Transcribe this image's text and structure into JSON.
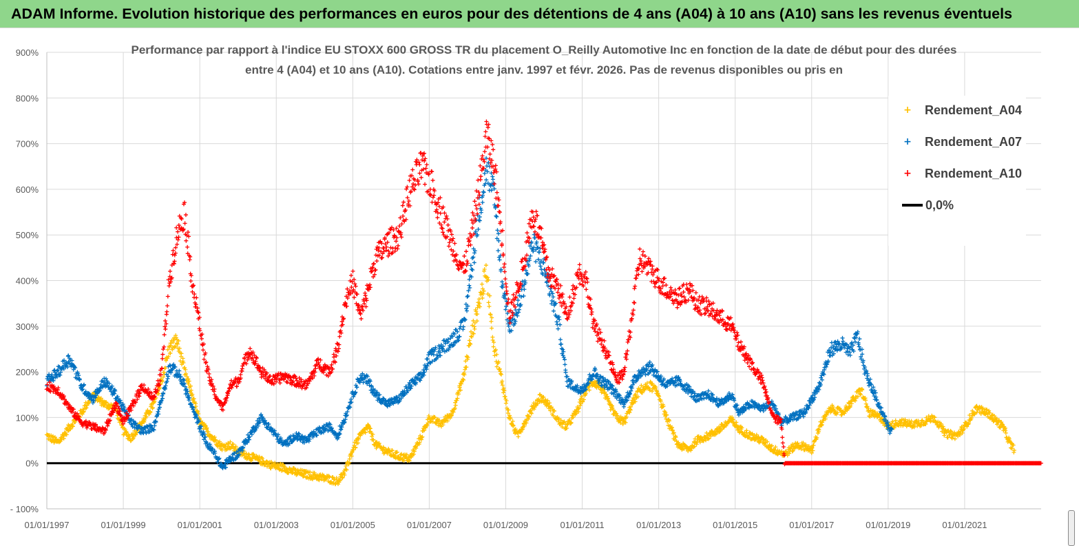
{
  "banner": {
    "title": "ADAM Informe. Evolution historique des performances en euros pour des détentions de 4 ans (A04) à 10 ans (A10) sans les revenus éventuels",
    "color": "#8fd68b"
  },
  "chart_data": {
    "type": "scatter",
    "title_lines": [
      "Performance par rapport à l'indice EU STOXX 600 GROSS TR  du placement O_Reilly Automotive Inc en fonction de la date de début pour des durées",
      "entre 4 (A04) et 10 ans (A10).  Cotations entre janv. 1997 et févr. 2026. Pas de revenus disponibles ou pris en"
    ],
    "xlabel": "",
    "ylabel": "",
    "x_range": [
      1997.0,
      2023.0
    ],
    "ylim": [
      -100,
      900
    ],
    "y_ticks": [
      -100,
      0,
      100,
      200,
      300,
      400,
      500,
      600,
      700,
      800,
      900
    ],
    "y_tick_labels": [
      "- 100%",
      "0%",
      "100%",
      "200%",
      "300%",
      "400%",
      "500%",
      "600%",
      "700%",
      "800%",
      "900%"
    ],
    "x_ticks": [
      1997,
      1999,
      2001,
      2003,
      2005,
      2007,
      2009,
      2011,
      2013,
      2015,
      2017,
      2019,
      2021
    ],
    "x_tick_labels": [
      "01/01/1997",
      "01/01/1999",
      "01/01/2001",
      "01/01/2003",
      "01/01/2005",
      "01/01/2007",
      "01/01/2009",
      "01/01/2011",
      "01/01/2013",
      "01/01/2015",
      "01/01/2017",
      "01/01/2019",
      "01/01/2021"
    ],
    "grid": true,
    "legend_position": "top-right",
    "series": [
      {
        "name": "Rendement_A04",
        "color": "#ffc000",
        "marker": "+",
        "points": [
          [
            1997.0,
            60
          ],
          [
            1997.3,
            45
          ],
          [
            1997.6,
            80
          ],
          [
            1997.9,
            110
          ],
          [
            1998.2,
            150
          ],
          [
            1998.5,
            130
          ],
          [
            1998.8,
            120
          ],
          [
            1999.0,
            70
          ],
          [
            1999.2,
            55
          ],
          [
            1999.5,
            90
          ],
          [
            1999.8,
            130
          ],
          [
            2000.0,
            180
          ],
          [
            2000.2,
            250
          ],
          [
            2000.4,
            270
          ],
          [
            2000.6,
            200
          ],
          [
            2000.8,
            150
          ],
          [
            2001.0,
            90
          ],
          [
            2001.2,
            70
          ],
          [
            2001.4,
            50
          ],
          [
            2001.6,
            35
          ],
          [
            2001.8,
            40
          ],
          [
            2002.0,
            25
          ],
          [
            2002.3,
            15
          ],
          [
            2002.6,
            5
          ],
          [
            2002.9,
            -5
          ],
          [
            2003.2,
            -10
          ],
          [
            2003.5,
            -20
          ],
          [
            2003.8,
            -25
          ],
          [
            2004.1,
            -30
          ],
          [
            2004.4,
            -35
          ],
          [
            2004.6,
            -40
          ],
          [
            2004.8,
            -20
          ],
          [
            2005.0,
            30
          ],
          [
            2005.2,
            60
          ],
          [
            2005.4,
            80
          ],
          [
            2005.6,
            40
          ],
          [
            2005.9,
            25
          ],
          [
            2006.2,
            15
          ],
          [
            2006.5,
            10
          ],
          [
            2006.8,
            60
          ],
          [
            2007.0,
            100
          ],
          [
            2007.3,
            85
          ],
          [
            2007.6,
            110
          ],
          [
            2007.9,
            190
          ],
          [
            2008.1,
            280
          ],
          [
            2008.3,
            350
          ],
          [
            2008.5,
            420
          ],
          [
            2008.7,
            250
          ],
          [
            2008.9,
            180
          ],
          [
            2009.1,
            100
          ],
          [
            2009.3,
            60
          ],
          [
            2009.5,
            90
          ],
          [
            2009.7,
            120
          ],
          [
            2009.9,
            145
          ],
          [
            2010.1,
            130
          ],
          [
            2010.4,
            90
          ],
          [
            2010.6,
            80
          ],
          [
            2010.9,
            120
          ],
          [
            2011.1,
            160
          ],
          [
            2011.3,
            180
          ],
          [
            2011.5,
            165
          ],
          [
            2011.7,
            130
          ],
          [
            2011.9,
            100
          ],
          [
            2012.1,
            90
          ],
          [
            2012.3,
            130
          ],
          [
            2012.5,
            160
          ],
          [
            2012.8,
            170
          ],
          [
            2013.0,
            150
          ],
          [
            2013.2,
            100
          ],
          [
            2013.5,
            40
          ],
          [
            2013.8,
            30
          ],
          [
            2014.0,
            50
          ],
          [
            2014.3,
            60
          ],
          [
            2014.6,
            75
          ],
          [
            2014.9,
            95
          ],
          [
            2015.1,
            75
          ],
          [
            2015.4,
            60
          ],
          [
            2015.7,
            50
          ],
          [
            2016.0,
            30
          ],
          [
            2016.3,
            20
          ],
          [
            2016.6,
            40
          ],
          [
            2016.9,
            35
          ],
          [
            2017.0,
            25
          ],
          [
            2017.2,
            80
          ],
          [
            2017.5,
            120
          ],
          [
            2017.8,
            110
          ],
          [
            2018.0,
            130
          ],
          [
            2018.3,
            160
          ],
          [
            2018.5,
            110
          ],
          [
            2018.8,
            100
          ],
          [
            2019.0,
            80
          ],
          [
            2019.3,
            90
          ],
          [
            2019.6,
            85
          ],
          [
            2019.9,
            90
          ],
          [
            2020.2,
            100
          ],
          [
            2020.5,
            65
          ],
          [
            2020.8,
            60
          ],
          [
            2021.0,
            80
          ],
          [
            2021.3,
            120
          ],
          [
            2021.6,
            110
          ],
          [
            2021.8,
            95
          ],
          [
            2022.0,
            80
          ],
          [
            2022.2,
            40
          ],
          [
            2022.3,
            30
          ]
        ]
      },
      {
        "name": "Rendement_A07",
        "color": "#0070c0",
        "marker": "+",
        "points": [
          [
            1997.0,
            180
          ],
          [
            1997.3,
            200
          ],
          [
            1997.6,
            230
          ],
          [
            1997.9,
            170
          ],
          [
            1998.2,
            140
          ],
          [
            1998.5,
            180
          ],
          [
            1998.8,
            150
          ],
          [
            1999.0,
            120
          ],
          [
            1999.2,
            90
          ],
          [
            1999.5,
            70
          ],
          [
            1999.8,
            80
          ],
          [
            2000.0,
            140
          ],
          [
            2000.2,
            210
          ],
          [
            2000.4,
            200
          ],
          [
            2000.6,
            170
          ],
          [
            2000.8,
            120
          ],
          [
            2001.0,
            80
          ],
          [
            2001.2,
            40
          ],
          [
            2001.4,
            20
          ],
          [
            2001.6,
            -10
          ],
          [
            2001.8,
            10
          ],
          [
            2002.0,
            20
          ],
          [
            2002.3,
            60
          ],
          [
            2002.6,
            100
          ],
          [
            2002.9,
            70
          ],
          [
            2003.2,
            40
          ],
          [
            2003.5,
            60
          ],
          [
            2003.8,
            50
          ],
          [
            2004.1,
            70
          ],
          [
            2004.4,
            80
          ],
          [
            2004.6,
            60
          ],
          [
            2004.8,
            100
          ],
          [
            2005.0,
            150
          ],
          [
            2005.2,
            190
          ],
          [
            2005.4,
            180
          ],
          [
            2005.6,
            150
          ],
          [
            2005.9,
            130
          ],
          [
            2006.2,
            140
          ],
          [
            2006.5,
            170
          ],
          [
            2006.8,
            190
          ],
          [
            2007.0,
            230
          ],
          [
            2007.3,
            250
          ],
          [
            2007.6,
            270
          ],
          [
            2007.9,
            300
          ],
          [
            2008.1,
            420
          ],
          [
            2008.3,
            550
          ],
          [
            2008.5,
            650
          ],
          [
            2008.7,
            580
          ],
          [
            2008.9,
            400
          ],
          [
            2009.1,
            300
          ],
          [
            2009.3,
            330
          ],
          [
            2009.5,
            400
          ],
          [
            2009.7,
            480
          ],
          [
            2009.9,
            450
          ],
          [
            2010.1,
            400
          ],
          [
            2010.4,
            300
          ],
          [
            2010.6,
            180
          ],
          [
            2010.9,
            160
          ],
          [
            2011.1,
            170
          ],
          [
            2011.3,
            200
          ],
          [
            2011.5,
            180
          ],
          [
            2011.7,
            170
          ],
          [
            2011.9,
            150
          ],
          [
            2012.1,
            130
          ],
          [
            2012.3,
            170
          ],
          [
            2012.5,
            200
          ],
          [
            2012.8,
            210
          ],
          [
            2013.0,
            190
          ],
          [
            2013.2,
            170
          ],
          [
            2013.5,
            180
          ],
          [
            2013.8,
            160
          ],
          [
            2014.0,
            140
          ],
          [
            2014.3,
            150
          ],
          [
            2014.6,
            130
          ],
          [
            2014.9,
            150
          ],
          [
            2015.1,
            110
          ],
          [
            2015.4,
            130
          ],
          [
            2015.7,
            120
          ],
          [
            2016.0,
            130
          ],
          [
            2016.2,
            90
          ],
          [
            2016.5,
            100
          ],
          [
            2016.8,
            110
          ],
          [
            2017.0,
            140
          ],
          [
            2017.2,
            170
          ],
          [
            2017.5,
            250
          ],
          [
            2017.8,
            260
          ],
          [
            2018.0,
            240
          ],
          [
            2018.2,
            280
          ],
          [
            2018.4,
            200
          ],
          [
            2018.6,
            160
          ],
          [
            2018.8,
            120
          ],
          [
            2019.0,
            80
          ],
          [
            2019.1,
            65
          ]
        ]
      },
      {
        "name": "Rendement_A10",
        "color": "#ff0000",
        "marker": "+",
        "points": [
          [
            1997.0,
            170
          ],
          [
            1997.3,
            160
          ],
          [
            1997.6,
            120
          ],
          [
            1997.9,
            90
          ],
          [
            1998.2,
            80
          ],
          [
            1998.5,
            70
          ],
          [
            1998.8,
            130
          ],
          [
            1999.0,
            90
          ],
          [
            1999.2,
            120
          ],
          [
            1999.5,
            170
          ],
          [
            1999.8,
            140
          ],
          [
            2000.0,
            200
          ],
          [
            2000.2,
            400
          ],
          [
            2000.4,
            500
          ],
          [
            2000.6,
            550
          ],
          [
            2000.8,
            400
          ],
          [
            2001.0,
            300
          ],
          [
            2001.2,
            200
          ],
          [
            2001.4,
            150
          ],
          [
            2001.6,
            120
          ],
          [
            2001.8,
            170
          ],
          [
            2002.0,
            180
          ],
          [
            2002.3,
            250
          ],
          [
            2002.6,
            200
          ],
          [
            2002.9,
            180
          ],
          [
            2003.2,
            190
          ],
          [
            2003.5,
            180
          ],
          [
            2003.8,
            170
          ],
          [
            2004.1,
            220
          ],
          [
            2004.4,
            200
          ],
          [
            2004.6,
            250
          ],
          [
            2004.8,
            350
          ],
          [
            2005.0,
            400
          ],
          [
            2005.2,
            320
          ],
          [
            2005.4,
            380
          ],
          [
            2005.6,
            450
          ],
          [
            2005.9,
            480
          ],
          [
            2006.2,
            500
          ],
          [
            2006.5,
            600
          ],
          [
            2006.8,
            650
          ],
          [
            2007.0,
            620
          ],
          [
            2007.3,
            550
          ],
          [
            2007.6,
            480
          ],
          [
            2007.9,
            420
          ],
          [
            2008.1,
            500
          ],
          [
            2008.3,
            600
          ],
          [
            2008.5,
            720
          ],
          [
            2008.7,
            650
          ],
          [
            2008.9,
            500
          ],
          [
            2009.1,
            320
          ],
          [
            2009.3,
            380
          ],
          [
            2009.5,
            450
          ],
          [
            2009.7,
            550
          ],
          [
            2009.9,
            500
          ],
          [
            2010.1,
            420
          ],
          [
            2010.4,
            380
          ],
          [
            2010.6,
            320
          ],
          [
            2010.9,
            420
          ],
          [
            2011.1,
            400
          ],
          [
            2011.3,
            300
          ],
          [
            2011.5,
            270
          ],
          [
            2011.7,
            230
          ],
          [
            2011.9,
            180
          ],
          [
            2012.1,
            200
          ],
          [
            2012.3,
            320
          ],
          [
            2012.5,
            450
          ],
          [
            2012.8,
            420
          ],
          [
            2013.0,
            400
          ],
          [
            2013.2,
            380
          ],
          [
            2013.5,
            360
          ],
          [
            2013.8,
            380
          ],
          [
            2014.0,
            350
          ],
          [
            2014.3,
            340
          ],
          [
            2014.6,
            320
          ],
          [
            2014.9,
            300
          ],
          [
            2015.1,
            260
          ],
          [
            2015.4,
            220
          ],
          [
            2015.7,
            180
          ],
          [
            2016.0,
            100
          ],
          [
            2016.2,
            90
          ],
          [
            2016.3,
            0
          ],
          [
            2017.0,
            0
          ],
          [
            2018.0,
            0
          ],
          [
            2019.0,
            0
          ],
          [
            2020.0,
            0
          ],
          [
            2021.0,
            0
          ],
          [
            2022.0,
            0
          ],
          [
            2023.0,
            0
          ]
        ]
      }
    ],
    "reference_line": {
      "name": "0,0%",
      "value": 0,
      "color": "#000000"
    }
  }
}
